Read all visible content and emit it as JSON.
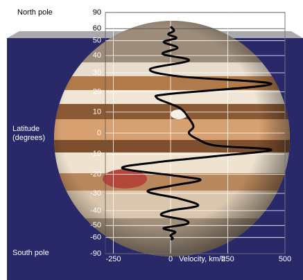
{
  "chart_data": {
    "type": "line",
    "north_label": "North pole",
    "south_label": "South pole",
    "ylabel": [
      "Latitude",
      "(degrees)"
    ],
    "xlabel": "Velocity, km/h",
    "yscale": "sine",
    "grid": true,
    "color": "#000000",
    "xlim": [
      -285,
      500
    ],
    "xticks": [
      -250,
      0,
      250,
      500
    ],
    "ylim": [
      -90,
      90
    ],
    "yticks": [
      90,
      60,
      50,
      40,
      30,
      20,
      10,
      0,
      -10,
      -20,
      -30,
      -40,
      -50,
      -60,
      -90
    ],
    "x": [
      0,
      15,
      -10,
      25,
      -30,
      30,
      -35,
      80,
      -90,
      40,
      440,
      0,
      -60,
      40,
      80,
      100,
      80,
      120,
      200,
      440,
      200,
      -60,
      -210,
      40,
      130,
      0,
      -100,
      40,
      120,
      0,
      -40,
      60,
      70,
      -30,
      20,
      0,
      10,
      0
    ],
    "values": [
      62,
      58,
      55,
      52,
      49,
      45,
      41,
      37,
      32,
      28,
      24,
      19,
      17,
      12,
      7,
      3,
      0,
      -3,
      -6,
      -8,
      -11,
      -14,
      -17,
      -21,
      -23,
      -26,
      -29,
      -33,
      -37,
      -40,
      -43,
      -46,
      -49,
      -52,
      -55,
      -58,
      -61,
      -62
    ]
  }
}
